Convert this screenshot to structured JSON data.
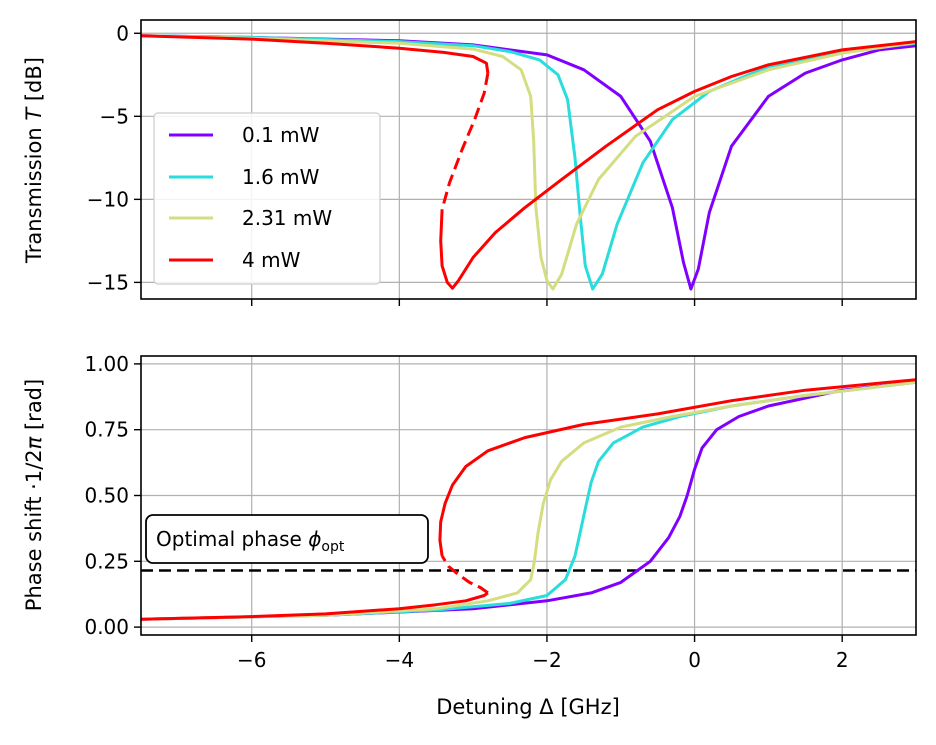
{
  "chart_data": [
    {
      "type": "line",
      "panel": "top",
      "ylabel_prefix": "Transmission ",
      "ylabel_var": "T",
      "ylabel_suffix": " [dB]",
      "xlim": [
        -7.5,
        3.0
      ],
      "ylim": [
        -16.0,
        0.8
      ],
      "xticks": [
        -6,
        -4,
        -2,
        0,
        2
      ],
      "yticks": [
        0,
        -5,
        -10,
        -15
      ],
      "ytick_labels": [
        "0",
        "−5",
        "−10",
        "−15"
      ],
      "grid": true,
      "legend": "left",
      "series": [
        {
          "name": "0.1 mW",
          "color": "#8000ff",
          "points": [
            [
              -7.5,
              -0.15
            ],
            [
              -6,
              -0.25
            ],
            [
              -4,
              -0.45
            ],
            [
              -3,
              -0.7
            ],
            [
              -2,
              -1.3
            ],
            [
              -1.5,
              -2.2
            ],
            [
              -1.0,
              -3.8
            ],
            [
              -0.6,
              -6.5
            ],
            [
              -0.3,
              -10.5
            ],
            [
              -0.15,
              -13.8
            ],
            [
              -0.05,
              -15.4
            ],
            [
              0.05,
              -14.2
            ],
            [
              0.2,
              -10.8
            ],
            [
              0.5,
              -6.8
            ],
            [
              1.0,
              -3.8
            ],
            [
              1.5,
              -2.4
            ],
            [
              2.0,
              -1.6
            ],
            [
              2.5,
              -1.0
            ],
            [
              3.0,
              -0.75
            ]
          ]
        },
        {
          "name": "1.6 mW",
          "color": "#2adddd",
          "points": [
            [
              -7.5,
              -0.15
            ],
            [
              -6,
              -0.25
            ],
            [
              -4,
              -0.5
            ],
            [
              -3,
              -0.75
            ],
            [
              -2.5,
              -1.1
            ],
            [
              -2.1,
              -1.6
            ],
            [
              -1.85,
              -2.5
            ],
            [
              -1.72,
              -4.0
            ],
            [
              -1.62,
              -7.5
            ],
            [
              -1.55,
              -11.0
            ],
            [
              -1.48,
              -14.0
            ],
            [
              -1.38,
              -15.4
            ],
            [
              -1.25,
              -14.5
            ],
            [
              -1.05,
              -11.5
            ],
            [
              -0.7,
              -7.8
            ],
            [
              -0.3,
              -5.2
            ],
            [
              0.2,
              -3.5
            ],
            [
              1.0,
              -2.0
            ],
            [
              2.0,
              -1.1
            ],
            [
              3.0,
              -0.6
            ]
          ]
        },
        {
          "name": "2.31 mW",
          "color": "#d4dd80",
          "points": [
            [
              -7.5,
              -0.15
            ],
            [
              -6,
              -0.3
            ],
            [
              -4,
              -0.6
            ],
            [
              -3,
              -0.95
            ],
            [
              -2.6,
              -1.4
            ],
            [
              -2.35,
              -2.2
            ],
            [
              -2.22,
              -3.8
            ],
            [
              -2.18,
              -6.5
            ],
            [
              -2.15,
              -10.5
            ],
            [
              -2.08,
              -13.5
            ],
            [
              -2.0,
              -14.9
            ],
            [
              -1.92,
              -15.4
            ],
            [
              -1.8,
              -14.5
            ],
            [
              -1.6,
              -11.5
            ],
            [
              -1.3,
              -8.8
            ],
            [
              -0.8,
              -6.2
            ],
            [
              0.0,
              -3.8
            ],
            [
              1.0,
              -2.2
            ],
            [
              2.0,
              -1.2
            ],
            [
              3.0,
              -0.55
            ]
          ]
        },
        {
          "name": "4 mW",
          "color": "#ff0000",
          "points": [
            [
              -7.5,
              -0.15
            ],
            [
              -6,
              -0.35
            ],
            [
              -5,
              -0.6
            ],
            [
              -4,
              -0.9
            ],
            [
              -3.4,
              -1.15
            ],
            [
              -3.0,
              -1.4
            ],
            [
              -2.82,
              -1.8
            ],
            [
              -2.8,
              -2.4
            ]
          ],
          "dashed_points": [
            [
              -2.8,
              -2.4
            ],
            [
              -2.85,
              -3.6
            ],
            [
              -2.98,
              -5.2
            ],
            [
              -3.15,
              -7.0
            ],
            [
              -3.32,
              -9.0
            ],
            [
              -3.42,
              -10.6
            ]
          ],
          "lower_points": [
            [
              -3.42,
              -10.6
            ],
            [
              -3.44,
              -12.5
            ],
            [
              -3.42,
              -14.0
            ],
            [
              -3.35,
              -15.0
            ],
            [
              -3.28,
              -15.35
            ],
            [
              -3.2,
              -14.9
            ],
            [
              -3.0,
              -13.5
            ],
            [
              -2.7,
              -12.0
            ],
            [
              -2.3,
              -10.5
            ],
            [
              -1.8,
              -8.8
            ],
            [
              -1.2,
              -6.8
            ],
            [
              -0.5,
              -4.6
            ],
            [
              0.0,
              -3.5
            ],
            [
              0.5,
              -2.6
            ],
            [
              1.0,
              -1.9
            ],
            [
              2.0,
              -1.0
            ],
            [
              3.0,
              -0.5
            ]
          ]
        }
      ]
    },
    {
      "type": "line",
      "panel": "bottom",
      "ylabel_prefix": "Phase shift ·1/2",
      "ylabel_var": "π",
      "ylabel_suffix": " [rad]",
      "xlabel": "Detuning Δ [GHz]",
      "xlim": [
        -7.5,
        3.0
      ],
      "ylim": [
        -0.03,
        1.03
      ],
      "xticks": [
        -6,
        -4,
        -2,
        0,
        2
      ],
      "xtick_labels": [
        "−6",
        "−4",
        "−2",
        "0",
        "2"
      ],
      "yticks": [
        0.0,
        0.25,
        0.5,
        0.75,
        1.0
      ],
      "ytick_labels": [
        "0.00",
        "0.25",
        "0.50",
        "0.75",
        "1.00"
      ],
      "grid": true,
      "hline": {
        "y": 0.215,
        "style": "dashed",
        "color": "#000000"
      },
      "annotation": {
        "text_prefix": "Optimal phase ",
        "symbol": "ϕ",
        "subscript": "opt"
      },
      "series": [
        {
          "name": "0.1 mW",
          "color": "#8000ff",
          "points": [
            [
              -7.5,
              0.03
            ],
            [
              -5,
              0.045
            ],
            [
              -3,
              0.07
            ],
            [
              -2,
              0.1
            ],
            [
              -1.4,
              0.13
            ],
            [
              -1.0,
              0.17
            ],
            [
              -0.6,
              0.25
            ],
            [
              -0.35,
              0.34
            ],
            [
              -0.2,
              0.42
            ],
            [
              -0.1,
              0.5
            ],
            [
              0.0,
              0.6
            ],
            [
              0.1,
              0.68
            ],
            [
              0.3,
              0.75
            ],
            [
              0.6,
              0.8
            ],
            [
              1.0,
              0.84
            ],
            [
              2.0,
              0.9
            ],
            [
              3.0,
              0.93
            ]
          ]
        },
        {
          "name": "1.6 mW",
          "color": "#2adddd",
          "points": [
            [
              -7.5,
              0.03
            ],
            [
              -5,
              0.045
            ],
            [
              -3.5,
              0.065
            ],
            [
              -2.5,
              0.09
            ],
            [
              -2.0,
              0.12
            ],
            [
              -1.75,
              0.18
            ],
            [
              -1.62,
              0.27
            ],
            [
              -1.55,
              0.36
            ],
            [
              -1.48,
              0.45
            ],
            [
              -1.4,
              0.55
            ],
            [
              -1.3,
              0.63
            ],
            [
              -1.1,
              0.7
            ],
            [
              -0.7,
              0.76
            ],
            [
              -0.2,
              0.8
            ],
            [
              0.5,
              0.84
            ],
            [
              1.5,
              0.88
            ],
            [
              3.0,
              0.93
            ]
          ]
        },
        {
          "name": "2.31 mW",
          "color": "#d4dd80",
          "points": [
            [
              -7.5,
              0.03
            ],
            [
              -5,
              0.045
            ],
            [
              -3.5,
              0.07
            ],
            [
              -2.8,
              0.1
            ],
            [
              -2.4,
              0.13
            ],
            [
              -2.22,
              0.18
            ],
            [
              -2.17,
              0.25
            ],
            [
              -2.12,
              0.36
            ],
            [
              -2.05,
              0.47
            ],
            [
              -1.95,
              0.56
            ],
            [
              -1.8,
              0.63
            ],
            [
              -1.5,
              0.7
            ],
            [
              -1.0,
              0.76
            ],
            [
              -0.3,
              0.8
            ],
            [
              0.5,
              0.84
            ],
            [
              1.5,
              0.88
            ],
            [
              3.0,
              0.93
            ]
          ]
        },
        {
          "name": "4 mW",
          "color": "#ff0000",
          "points": [
            [
              -7.5,
              0.03
            ],
            [
              -6,
              0.04
            ],
            [
              -5,
              0.05
            ],
            [
              -4,
              0.07
            ],
            [
              -3.5,
              0.085
            ],
            [
              -3.1,
              0.1
            ],
            [
              -2.85,
              0.12
            ],
            [
              -2.8,
              0.13
            ]
          ],
          "dashed_points": [
            [
              -2.8,
              0.13
            ],
            [
              -2.9,
              0.15
            ],
            [
              -3.05,
              0.17
            ],
            [
              -3.2,
              0.2
            ],
            [
              -3.33,
              0.23
            ],
            [
              -3.42,
              0.27
            ]
          ],
          "lower_points": [
            [
              -3.42,
              0.27
            ],
            [
              -3.45,
              0.33
            ],
            [
              -3.44,
              0.4
            ],
            [
              -3.38,
              0.47
            ],
            [
              -3.28,
              0.54
            ],
            [
              -3.1,
              0.61
            ],
            [
              -2.8,
              0.67
            ],
            [
              -2.3,
              0.72
            ],
            [
              -1.5,
              0.77
            ],
            [
              -0.5,
              0.81
            ],
            [
              0.5,
              0.86
            ],
            [
              1.5,
              0.9
            ],
            [
              3.0,
              0.94
            ]
          ]
        }
      ]
    }
  ]
}
